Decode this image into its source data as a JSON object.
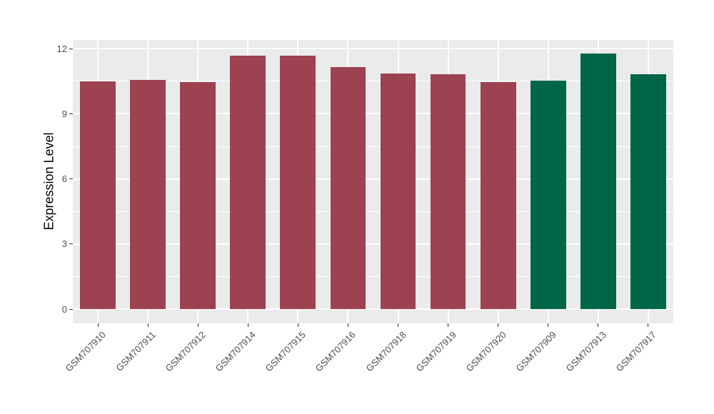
{
  "chart_data": {
    "type": "bar",
    "title": "",
    "xlabel": "",
    "ylabel": "Expression Level",
    "categories": [
      "GSM707910",
      "GSM707911",
      "GSM707912",
      "GSM707914",
      "GSM707915",
      "GSM707916",
      "GSM707918",
      "GSM707919",
      "GSM707920",
      "GSM707909",
      "GSM707913",
      "GSM707917"
    ],
    "values": [
      10.5,
      10.55,
      10.45,
      11.68,
      11.68,
      11.15,
      10.87,
      10.83,
      10.47,
      10.52,
      11.78,
      10.81
    ],
    "bar_colors": [
      "#9C4251",
      "#9C4251",
      "#9C4251",
      "#9C4251",
      "#9C4251",
      "#9C4251",
      "#9C4251",
      "#9C4251",
      "#9C4251",
      "#006648",
      "#006648",
      "#006648"
    ],
    "palette": {
      "maroon_group": "#9C4251",
      "green_group": "#006648"
    },
    "y_ticks": [
      0,
      3,
      6,
      9,
      12
    ],
    "y_tick_labels": [
      "0",
      "3",
      "6",
      "9",
      "12"
    ],
    "y_minor_gridlines": [
      1.5,
      4.5,
      7.5,
      10.5
    ],
    "ylim": [
      -0.65,
      12.4
    ],
    "bar_base": 0,
    "legend_position": "none",
    "panel_background": "#EBEBEB",
    "major_gridline_color": "#FFFFFF",
    "minor_gridline_color": "#FFFFFF",
    "tick_color": "#333333"
  }
}
